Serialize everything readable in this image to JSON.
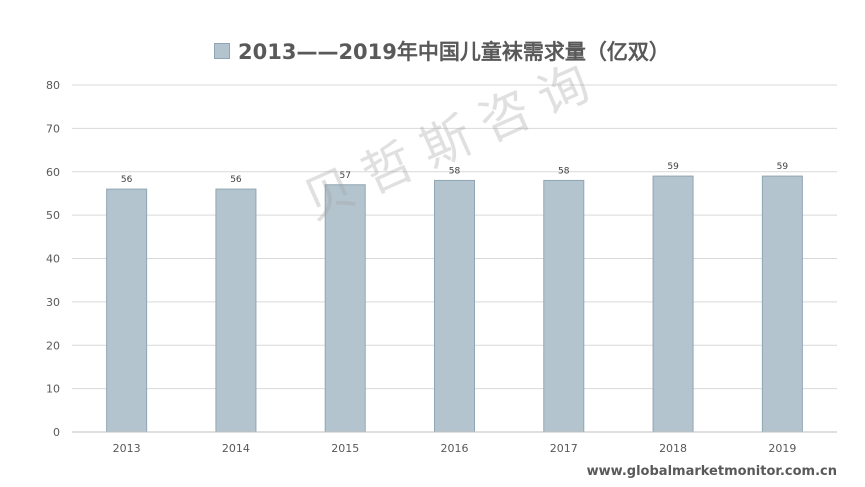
{
  "chart_data": {
    "type": "bar",
    "legend": "2013——2019年中国儿童袜需求量（亿双）",
    "categories": [
      "2013",
      "2014",
      "2015",
      "2016",
      "2017",
      "2018",
      "2019"
    ],
    "values": [
      56,
      56,
      57,
      58,
      58,
      59,
      59
    ],
    "ylim": [
      0,
      80
    ],
    "yticks": [
      0,
      10,
      20,
      30,
      40,
      50,
      60,
      70,
      80
    ],
    "grid": true,
    "legend_position": "top-center",
    "bar_color": "#b4c4ce",
    "bar_stroke": "#8fa6b3"
  },
  "watermark": "贝哲斯咨询",
  "source": "www.globalmarketmonitor.com.cn"
}
